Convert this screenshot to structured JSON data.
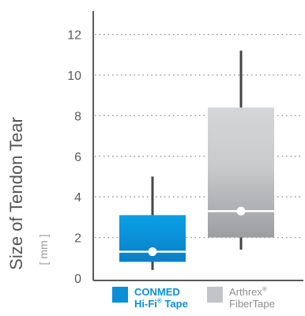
{
  "chart_data": {
    "type": "box",
    "ylabel": "Size of Tendon Tear",
    "yunit": "[ mm ]",
    "ylim": [
      0,
      13
    ],
    "yticks": [
      "0",
      "2",
      "4",
      "6",
      "8",
      "10",
      "12"
    ],
    "ytick_values": [
      0,
      2,
      4,
      6,
      8,
      10,
      12
    ],
    "grid": "horizontal-dotted",
    "legend": "bottom",
    "series": [
      {
        "legend_lines": [
          "CONMED",
          "Hi-Fi",
          "Tape"
        ],
        "legend_mark": "®",
        "color": "#0a8fd8",
        "min": 0.4,
        "q1": 0.8,
        "median": 1.3,
        "q3": 3.1,
        "max": 5.0
      },
      {
        "legend_lines": [
          "Arthrex",
          "FiberTape"
        ],
        "legend_mark": "®",
        "color": "#c2c4c7",
        "min": 1.4,
        "q1": 2.0,
        "median": 3.3,
        "q3": 8.4,
        "max": 11.2
      }
    ]
  }
}
